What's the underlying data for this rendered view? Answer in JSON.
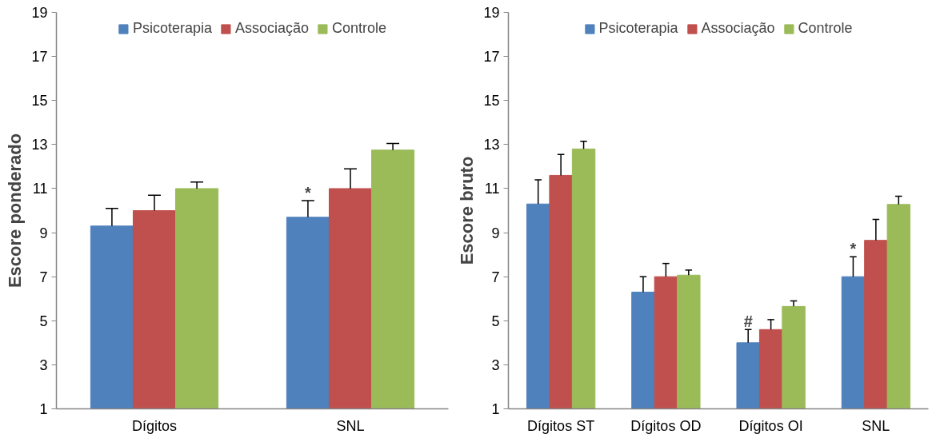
{
  "chart_data": [
    {
      "type": "bar",
      "ylabel": "Escore ponderado",
      "categories": [
        "Dígitos",
        "SNL"
      ],
      "series": [
        {
          "name": "Psicoterapia",
          "color": "#4f81bd",
          "values": [
            9.3,
            9.7
          ],
          "errors": [
            [
              9.3,
              10.1
            ],
            [
              9.7,
              10.45
            ]
          ]
        },
        {
          "name": "Associação",
          "color": "#c0504d",
          "values": [
            10.0,
            11.0
          ],
          "errors": [
            [
              10.0,
              10.7
            ],
            [
              11.0,
              11.9
            ]
          ]
        },
        {
          "name": "Controle",
          "color": "#9bbb59",
          "values": [
            11.0,
            12.75
          ],
          "errors": [
            [
              11.0,
              11.3
            ],
            [
              12.75,
              13.05
            ]
          ]
        }
      ],
      "ylim": [
        1,
        19
      ],
      "yticks": [
        1,
        3,
        5,
        7,
        9,
        11,
        13,
        15,
        17,
        19
      ],
      "grid": false,
      "legend": "top",
      "annotations": [
        "*"
      ]
    },
    {
      "type": "bar",
      "ylabel": "Escore bruto",
      "categories": [
        "Dígitos ST",
        "Dígitos OD",
        "Dígitos OI",
        "SNL"
      ],
      "series": [
        {
          "name": "Psicoterapia",
          "color": "#4f81bd",
          "values": [
            10.3,
            6.3,
            4.0,
            7.0
          ],
          "errors": [
            [
              10.3,
              11.4
            ],
            [
              6.3,
              7.0
            ],
            [
              4.0,
              4.6
            ],
            [
              7.0,
              7.9
            ]
          ]
        },
        {
          "name": "Associação",
          "color": "#c0504d",
          "values": [
            11.6,
            7.0,
            4.6,
            8.65
          ],
          "errors": [
            [
              11.6,
              12.55
            ],
            [
              7.0,
              7.6
            ],
            [
              4.6,
              5.05
            ],
            [
              8.65,
              9.6
            ]
          ]
        },
        {
          "name": "Controle",
          "color": "#9bbb59",
          "values": [
            12.8,
            7.07,
            5.65,
            10.28
          ],
          "errors": [
            [
              12.8,
              13.15
            ],
            [
              7.07,
              7.3
            ],
            [
              5.65,
              5.9
            ],
            [
              10.28,
              10.65
            ]
          ]
        }
      ],
      "ylim": [
        1,
        19
      ],
      "yticks": [
        1,
        3,
        5,
        7,
        9,
        11,
        13,
        15,
        17,
        19
      ],
      "grid": false,
      "legend": "top",
      "annotations": [
        "#",
        "*"
      ]
    }
  ]
}
